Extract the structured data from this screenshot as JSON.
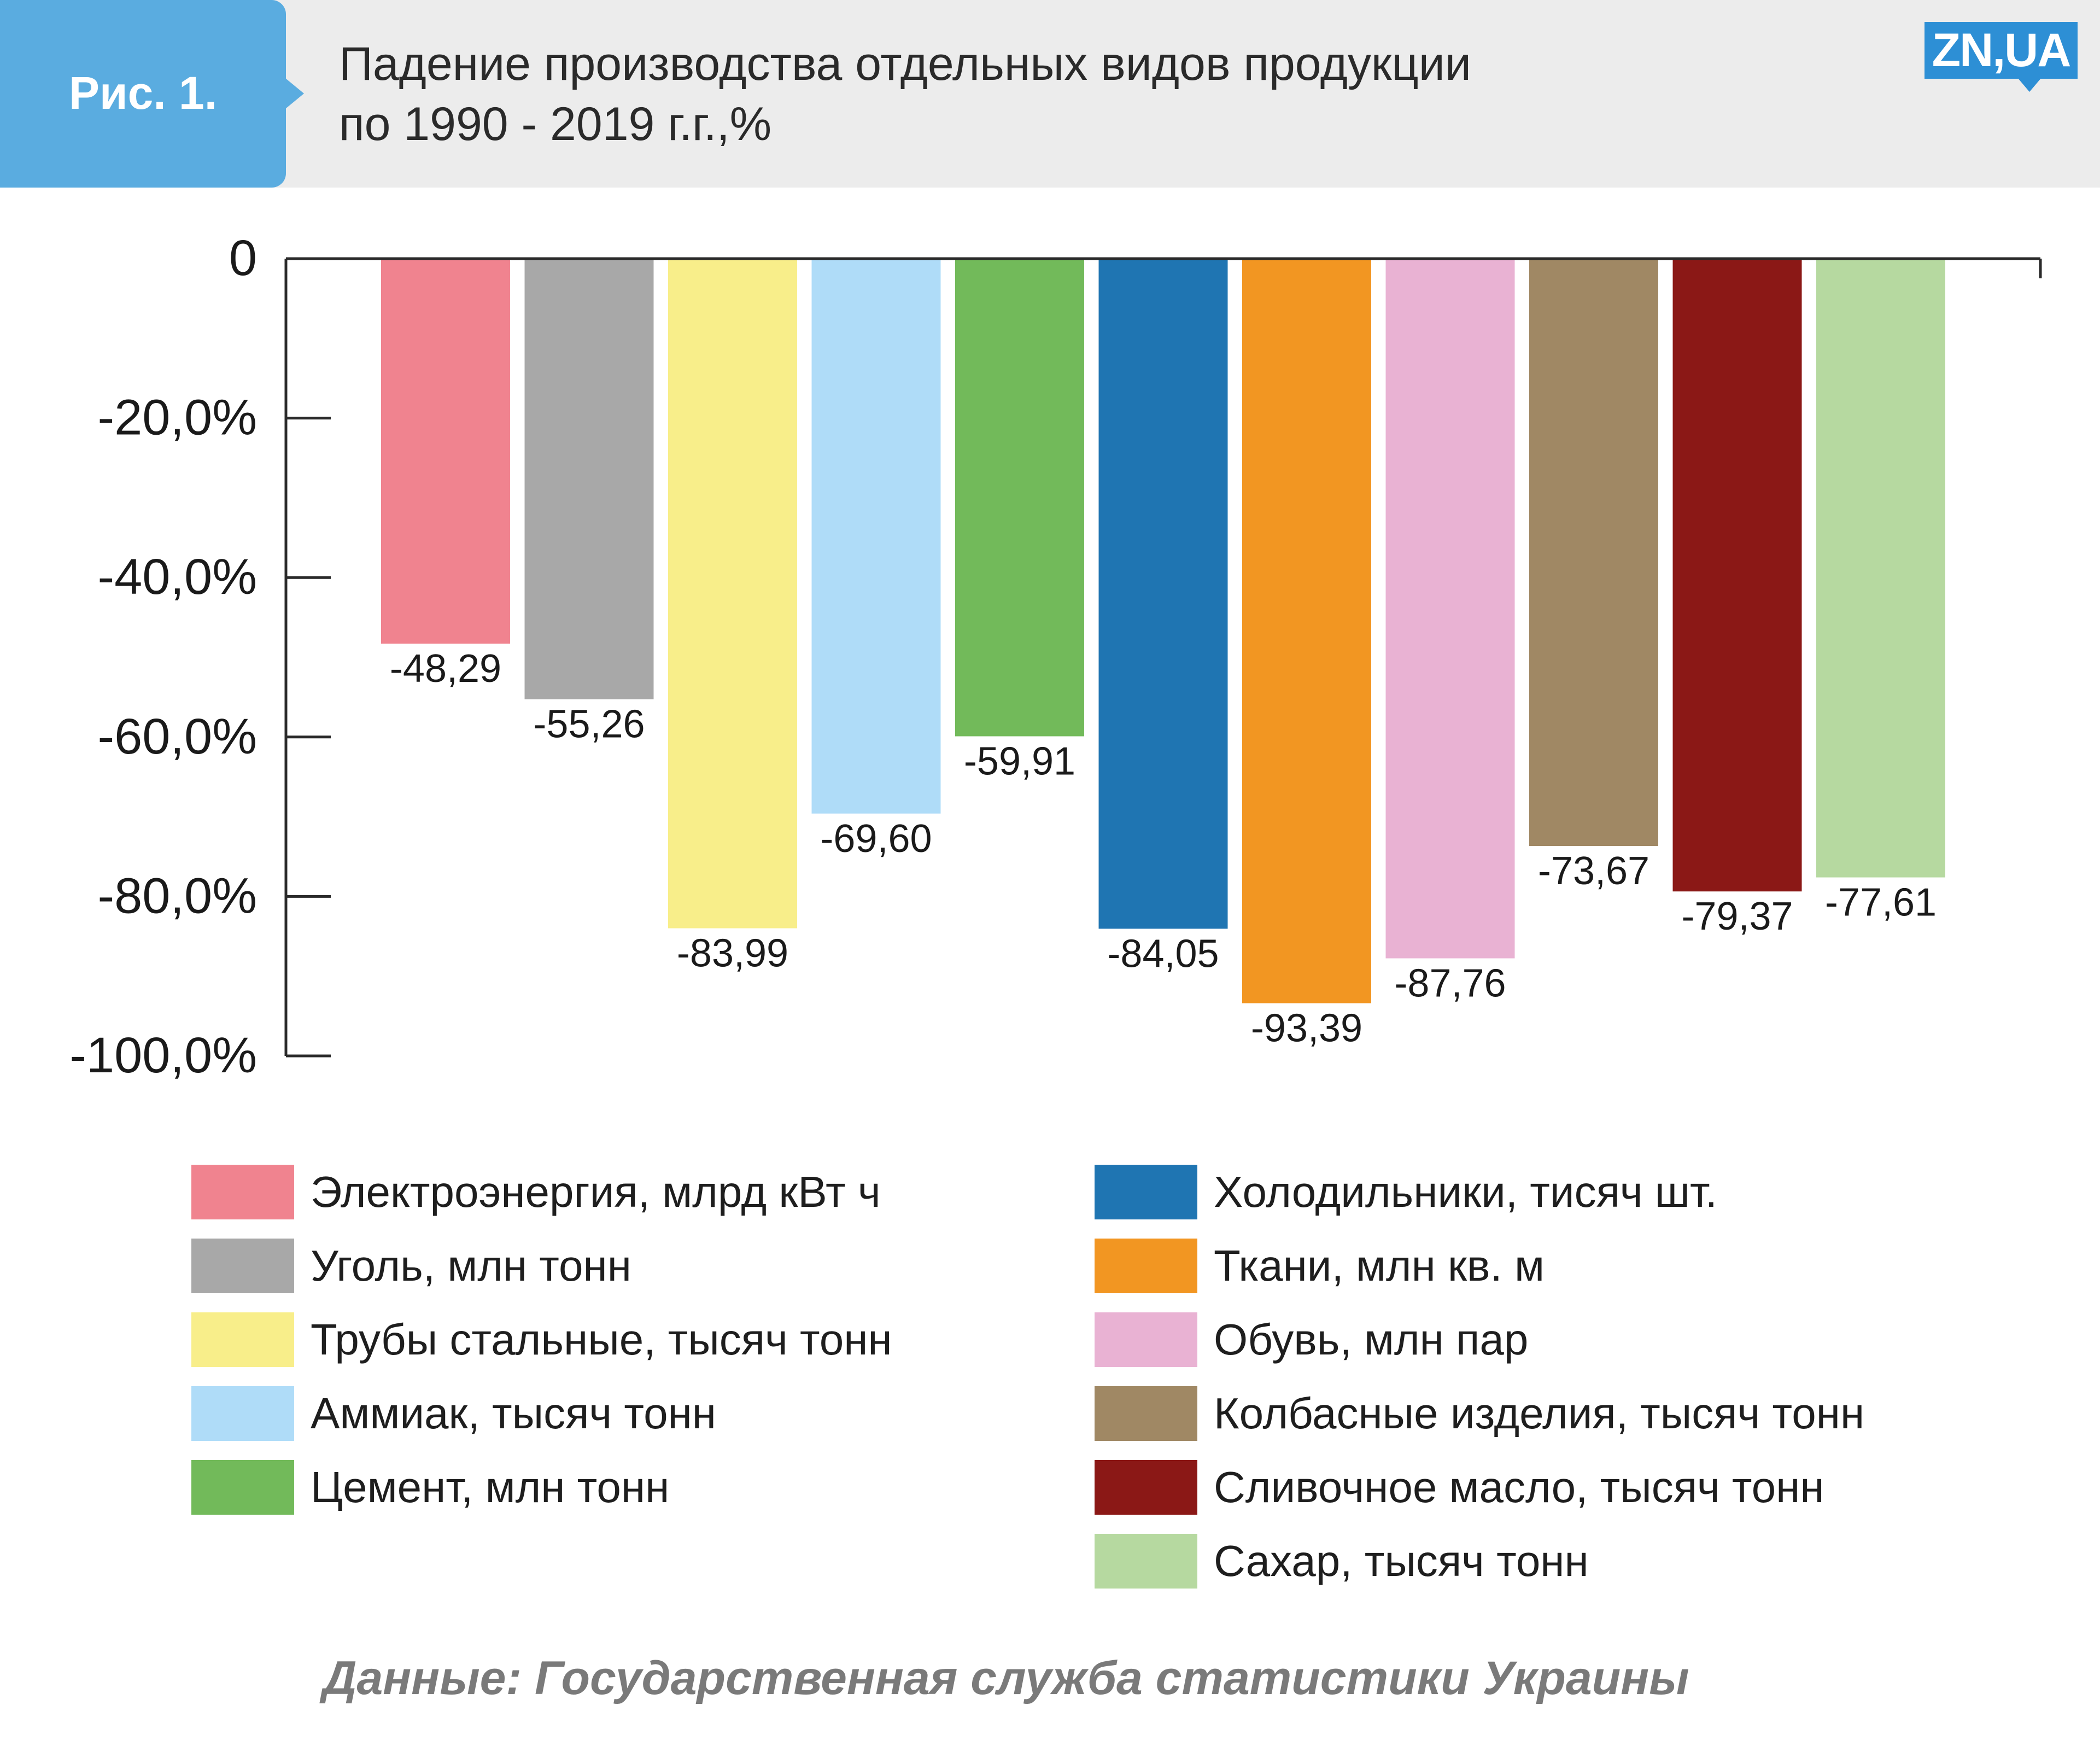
{
  "header": {
    "figure_label": "Рис. 1.",
    "title_line1": "Падение производства отдельных видов продукции",
    "title_line2": "по 1990 - 2019 г.г.,%",
    "logo_text": "ZN,UA"
  },
  "chart_data": {
    "type": "bar",
    "title": "Падение производства отдельных видов продукции по 1990 - 2019 г.г.,%",
    "xlabel": "",
    "ylabel": "",
    "ylim": [
      -100,
      0
    ],
    "y_ticks": [
      0,
      -20,
      -40,
      -60,
      -80,
      -100
    ],
    "y_tick_labels": [
      "0",
      "-20,0%",
      "-40,0%",
      "-60,0%",
      "-80,0%",
      "-100,0%"
    ],
    "grid": false,
    "legend_position": "bottom",
    "categories": [
      "Электроэнергия, млрд кВт ч",
      "Уголь, млн тонн",
      "Трубы стальные, тысяч тонн",
      "Аммиак, тысяч тонн",
      "Цемент, млн тонн",
      "Холодильники, тисяч шт.",
      "Ткани, млн кв. м",
      "Обувь, млн пар",
      "Колбасные изделия, тысяч тонн",
      "Сливочное масло, тысяч тонн",
      "Сахар, тысяч тонн"
    ],
    "values": [
      -48.29,
      -55.26,
      -83.99,
      -69.6,
      -59.91,
      -84.05,
      -93.39,
      -87.76,
      -73.67,
      -79.37,
      -77.61
    ],
    "value_labels": [
      "-48,29",
      "-55,26",
      "-83,99",
      "-69,60",
      "-59,91",
      "-84,05",
      "-93,39",
      "-87,76",
      "-73,67",
      "-79,37",
      "-77,61"
    ],
    "colors": [
      "#f0838f",
      "#a8a8a8",
      "#f8ee8a",
      "#afdcf8",
      "#72ba5a",
      "#1f75b2",
      "#f29622",
      "#e9b2d3",
      "#a08864",
      "#8b1816",
      "#b6d9a0"
    ]
  },
  "legend": {
    "left": [
      {
        "label": "Электроэнергия, млрд кВт ч",
        "color": "#f0838f"
      },
      {
        "label": "Уголь, млн тонн",
        "color": "#a8a8a8"
      },
      {
        "label": "Трубы стальные, тысяч тонн",
        "color": "#f8ee8a"
      },
      {
        "label": "Аммиак, тысяч тонн",
        "color": "#afdcf8"
      },
      {
        "label": "Цемент, млн тонн",
        "color": "#72ba5a"
      }
    ],
    "right": [
      {
        "label": "Холодильники, тисяч шт.",
        "color": "#1f75b2"
      },
      {
        "label": "Ткани, млн кв. м",
        "color": "#f29622"
      },
      {
        "label": "Обувь, млн пар",
        "color": "#e9b2d3"
      },
      {
        "label": "Колбасные изделия, тысяч тонн",
        "color": "#a08864"
      },
      {
        "label": "Сливочное масло, тысяч тонн",
        "color": "#8b1816"
      },
      {
        "label": "Сахар, тысяч тонн",
        "color": "#b6d9a0"
      }
    ]
  },
  "source": "Данные: Государственная служба статистики Украины"
}
